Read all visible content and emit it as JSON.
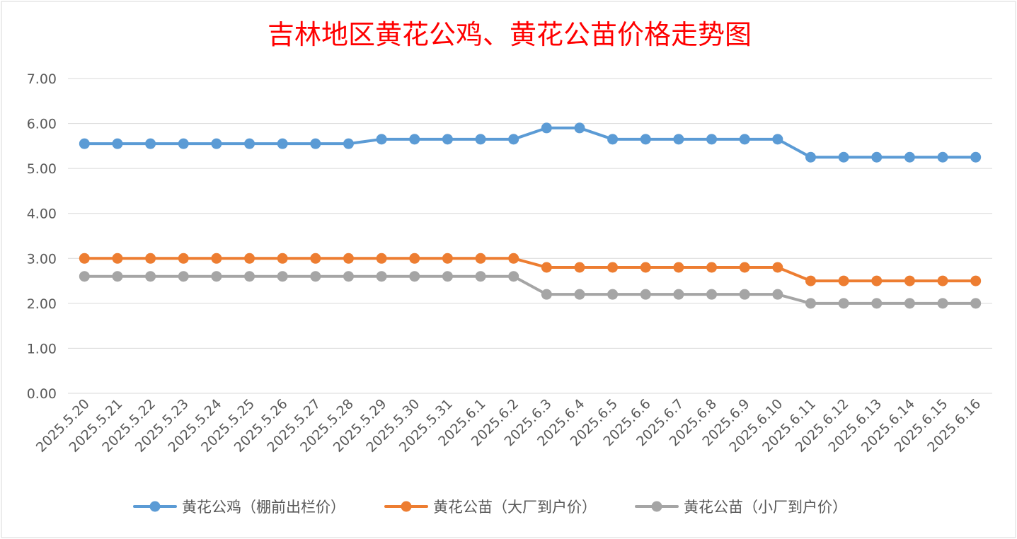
{
  "chart_data": {
    "type": "line",
    "title": "吉林地区黄花公鸡、黄花公苗价格走势图",
    "xlabel": "",
    "ylabel": "",
    "ylim": [
      0,
      7
    ],
    "yticks": [
      "0.00",
      "1.00",
      "2.00",
      "3.00",
      "4.00",
      "5.00",
      "6.00",
      "7.00"
    ],
    "grid": true,
    "legend": "bottom",
    "categories": [
      "2025.5.20",
      "2025.5.21",
      "2025.5.22",
      "2025.5.23",
      "2025.5.24",
      "2025.5.25",
      "2025.5.26",
      "2025.5.27",
      "2025.5.28",
      "2025.5.29",
      "2025.5.30",
      "2025.5.31",
      "2025.6.1",
      "2025.6.2",
      "2025.6.3",
      "2025.6.4",
      "2025.6.5",
      "2025.6.6",
      "2025.6.7",
      "2025.6.8",
      "2025.6.9",
      "2025.6.10",
      "2025.6.11",
      "2025.6.12",
      "2025.6.13",
      "2025.6.14",
      "2025.6.15",
      "2025.6.16"
    ],
    "series": [
      {
        "name": "黄花公鸡（棚前出栏价）",
        "color": "#5b9bd5",
        "values": [
          5.55,
          5.55,
          5.55,
          5.55,
          5.55,
          5.55,
          5.55,
          5.55,
          5.55,
          5.65,
          5.65,
          5.65,
          5.65,
          5.65,
          5.9,
          5.9,
          5.65,
          5.65,
          5.65,
          5.65,
          5.65,
          5.65,
          5.25,
          5.25,
          5.25,
          5.25,
          5.25,
          5.25
        ]
      },
      {
        "name": "黄花公苗（大厂到户价）",
        "color": "#ed7d31",
        "values": [
          3.0,
          3.0,
          3.0,
          3.0,
          3.0,
          3.0,
          3.0,
          3.0,
          3.0,
          3.0,
          3.0,
          3.0,
          3.0,
          3.0,
          2.8,
          2.8,
          2.8,
          2.8,
          2.8,
          2.8,
          2.8,
          2.8,
          2.5,
          2.5,
          2.5,
          2.5,
          2.5,
          2.5
        ]
      },
      {
        "name": "黄花公苗（小厂到户价）",
        "color": "#a5a5a5",
        "values": [
          2.6,
          2.6,
          2.6,
          2.6,
          2.6,
          2.6,
          2.6,
          2.6,
          2.6,
          2.6,
          2.6,
          2.6,
          2.6,
          2.6,
          2.2,
          2.2,
          2.2,
          2.2,
          2.2,
          2.2,
          2.2,
          2.2,
          2.0,
          2.0,
          2.0,
          2.0,
          2.0,
          2.0
        ]
      }
    ]
  }
}
